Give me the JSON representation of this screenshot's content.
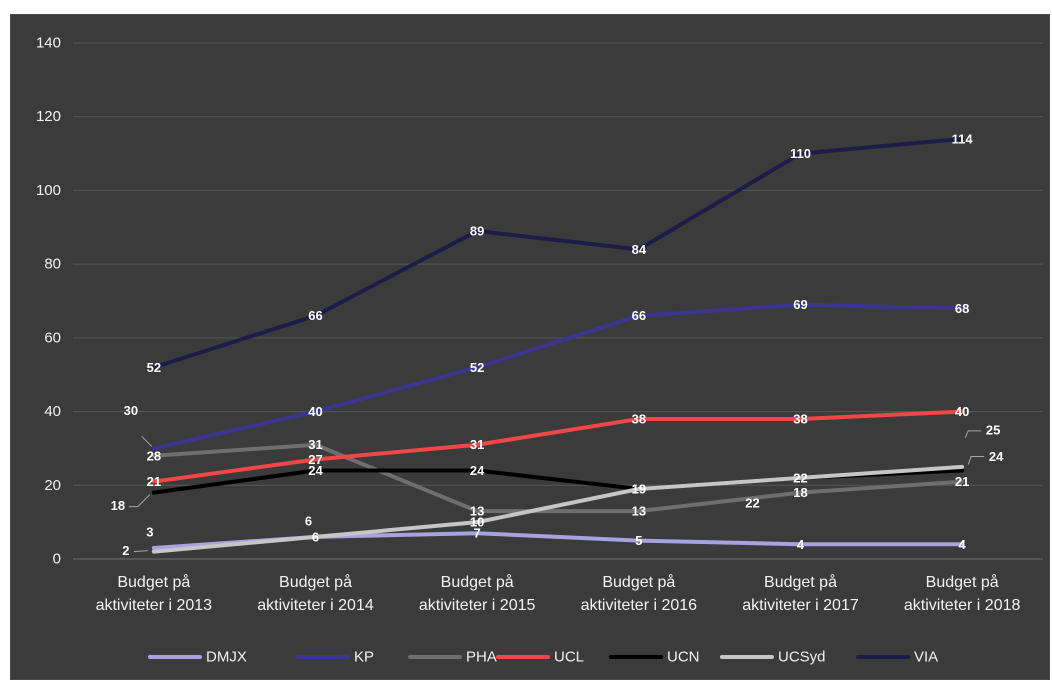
{
  "chart_data": {
    "type": "line",
    "categories": [
      "Budget på aktiviteter i 2013",
      "Budget på aktiviteter i 2014",
      "Budget på aktiviteter i 2015",
      "Budget på aktiviteter i 2016",
      "Budget på aktiviteter i 2017",
      "Budget på aktiviteter i 2018"
    ],
    "series": [
      {
        "name": "DMJX",
        "color": "#a9a2df",
        "values": [
          3,
          6,
          7,
          5,
          4,
          4
        ]
      },
      {
        "name": "KP",
        "color": "#3b3490",
        "values": [
          30,
          40,
          52,
          66,
          69,
          68
        ]
      },
      {
        "name": "PHA",
        "color": "#6e6e6e",
        "values": [
          28,
          31,
          13,
          13,
          18,
          21
        ]
      },
      {
        "name": "UCL",
        "color": "#f04646",
        "values": [
          21,
          27,
          31,
          38,
          38,
          40
        ]
      },
      {
        "name": "UCN",
        "color": "#000000",
        "values": [
          18,
          24,
          24,
          19,
          22,
          24
        ]
      },
      {
        "name": "UCSyd",
        "color": "#c6c6c6",
        "values": [
          2,
          6,
          10,
          19,
          22,
          25
        ]
      },
      {
        "name": "VIA",
        "color": "#1f1b48",
        "values": [
          52,
          66,
          89,
          84,
          110,
          114
        ]
      }
    ],
    "ylim": [
      0,
      140
    ],
    "yticks": [
      0,
      20,
      40,
      60,
      80,
      100,
      120,
      140
    ],
    "grid": true,
    "legend": "bottom",
    "data_labels": true
  },
  "style": {
    "background": "#3b3b3b",
    "gridline": "#575757",
    "axis": "#6e6e6e",
    "leader": "#a6a6a6"
  }
}
